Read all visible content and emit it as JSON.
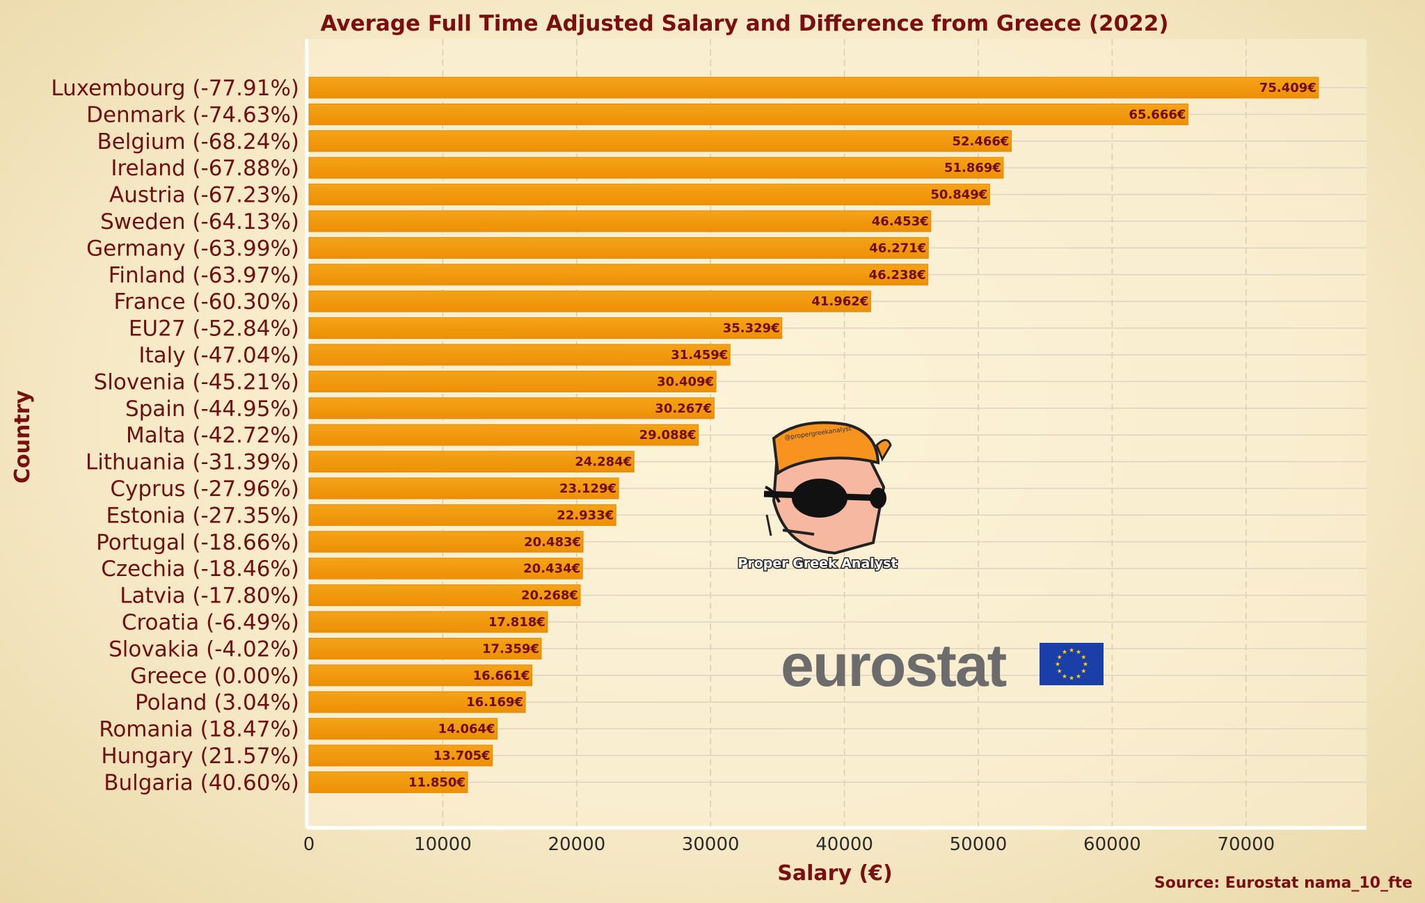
{
  "chart_data": {
    "type": "bar",
    "orientation": "horizontal",
    "title": "Average Full Time Adjusted Salary and Difference from Greece (2022)",
    "xlabel": "Salary (€)",
    "ylabel": "Country",
    "xlim": [
      0,
      79000
    ],
    "xticks": [
      0,
      10000,
      20000,
      30000,
      40000,
      50000,
      60000,
      70000
    ],
    "xtick_labels": [
      "0",
      "10000",
      "20000",
      "30000",
      "40000",
      "50000",
      "60000",
      "70000"
    ],
    "grid": "vertical dashed, horizontal solid",
    "bar_color": "#f29a0a",
    "categories": [
      "Luxembourg (-77.91%)",
      "Denmark (-74.63%)",
      "Belgium (-68.24%)",
      "Ireland (-67.88%)",
      "Austria (-67.23%)",
      "Sweden (-64.13%)",
      "Germany (-63.99%)",
      "Finland (-63.97%)",
      "France (-60.30%)",
      "EU27 (-52.84%)",
      "Italy (-47.04%)",
      "Slovenia (-45.21%)",
      "Spain (-44.95%)",
      "Malta (-42.72%)",
      "Lithuania (-31.39%)",
      "Cyprus (-27.96%)",
      "Estonia (-27.35%)",
      "Portugal (-18.66%)",
      "Czechia (-18.46%)",
      "Latvia (-17.80%)",
      "Croatia (-6.49%)",
      "Slovakia (-4.02%)",
      "Greece (0.00%)",
      "Poland (3.04%)",
      "Romania (18.47%)",
      "Hungary (21.57%)",
      "Bulgaria (40.60%)"
    ],
    "values": [
      75409,
      65666,
      52466,
      51869,
      50849,
      46453,
      46271,
      46238,
      41962,
      35329,
      31459,
      30409,
      30267,
      29088,
      24284,
      23129,
      22933,
      20483,
      20434,
      20268,
      17818,
      17359,
      16661,
      16169,
      14064,
      13705,
      11850
    ],
    "value_labels": [
      "75.409€",
      "65.666€",
      "52.466€",
      "51.869€",
      "50.849€",
      "46.453€",
      "46.271€",
      "46.238€",
      "41.962€",
      "35.329€",
      "31.459€",
      "30.409€",
      "30.267€",
      "29.088€",
      "24.284€",
      "23.129€",
      "22.933€",
      "20.483€",
      "20.434€",
      "20.268€",
      "17.818€",
      "17.359€",
      "16.661€",
      "16.169€",
      "14.064€",
      "13.705€",
      "11.850€"
    ]
  },
  "source": "Source: Eurostat nama_10_fte",
  "watermark": {
    "caption": "Proper Greek Analyst",
    "handle": "@propergreekanalyst"
  },
  "eurostat_logo": {
    "text": "eurostat",
    "text_color": "#6c6c6c",
    "flag_color": "#1a3fa8",
    "star_color": "#ffd400"
  },
  "colors": {
    "title": "#7a0f0f",
    "label": "#6e1010",
    "bar": "#f29a0a"
  }
}
